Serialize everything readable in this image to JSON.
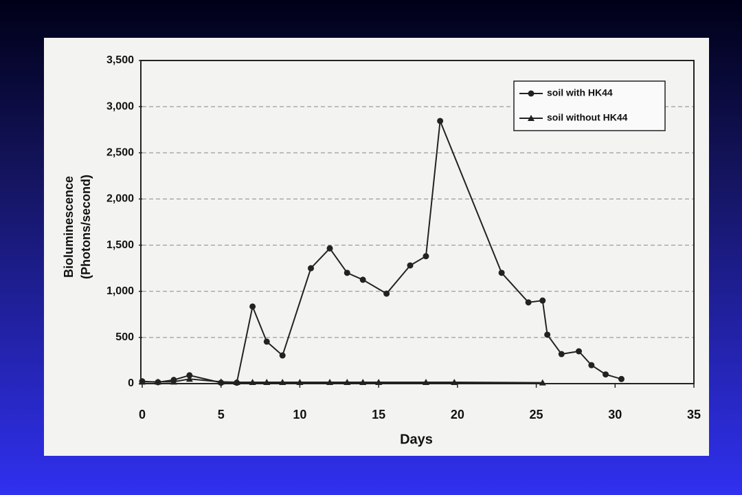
{
  "chart_data": {
    "type": "line",
    "x_label": "Days",
    "y_label": [
      "Bioluminescence",
      "(Photons/second)"
    ],
    "xlim": [
      0,
      35
    ],
    "xticks": [
      0,
      5,
      10,
      15,
      20,
      25,
      30,
      35
    ],
    "ylim": [
      0,
      3500
    ],
    "yticks": [
      0,
      500,
      {
        "value": 1000,
        "label": "1,000"
      },
      {
        "value": 1500,
        "label": "1,500"
      },
      {
        "value": 2000,
        "label": "2,000"
      },
      {
        "value": 2500,
        "label": "2,500"
      },
      {
        "value": 3000,
        "label": "3,000"
      },
      {
        "value": 3500,
        "label": "3,500"
      }
    ],
    "grid": true,
    "legend": "upper right",
    "series": [
      {
        "name": "soil with HK44",
        "color": "#222222",
        "marker": "circle",
        "x": [
          0,
          1,
          2,
          3,
          5,
          6,
          7,
          7.9,
          8.9,
          10.7,
          11.9,
          13,
          14,
          15.5,
          17,
          18,
          18.9,
          22.8,
          24.5,
          25.4,
          25.7,
          26.6,
          27.7,
          28.5,
          29.4,
          30.4
        ],
        "values": [
          25,
          15,
          40,
          90,
          10,
          10,
          835,
          455,
          305,
          1250,
          1465,
          1200,
          1125,
          975,
          1280,
          1380,
          2845,
          1200,
          880,
          900,
          530,
          320,
          350,
          200,
          100,
          50
        ]
      },
      {
        "name": "soil without HK44",
        "color": "#222222",
        "marker": "triangle",
        "x": [
          0,
          1,
          2,
          3,
          5,
          6,
          7,
          7.9,
          8.9,
          10,
          11.9,
          13,
          14,
          15,
          18,
          19.8,
          25.4
        ],
        "values": [
          20,
          20,
          20,
          50,
          20,
          15,
          15,
          15,
          15,
          15,
          15,
          15,
          15,
          15,
          15,
          15,
          10
        ]
      }
    ]
  }
}
